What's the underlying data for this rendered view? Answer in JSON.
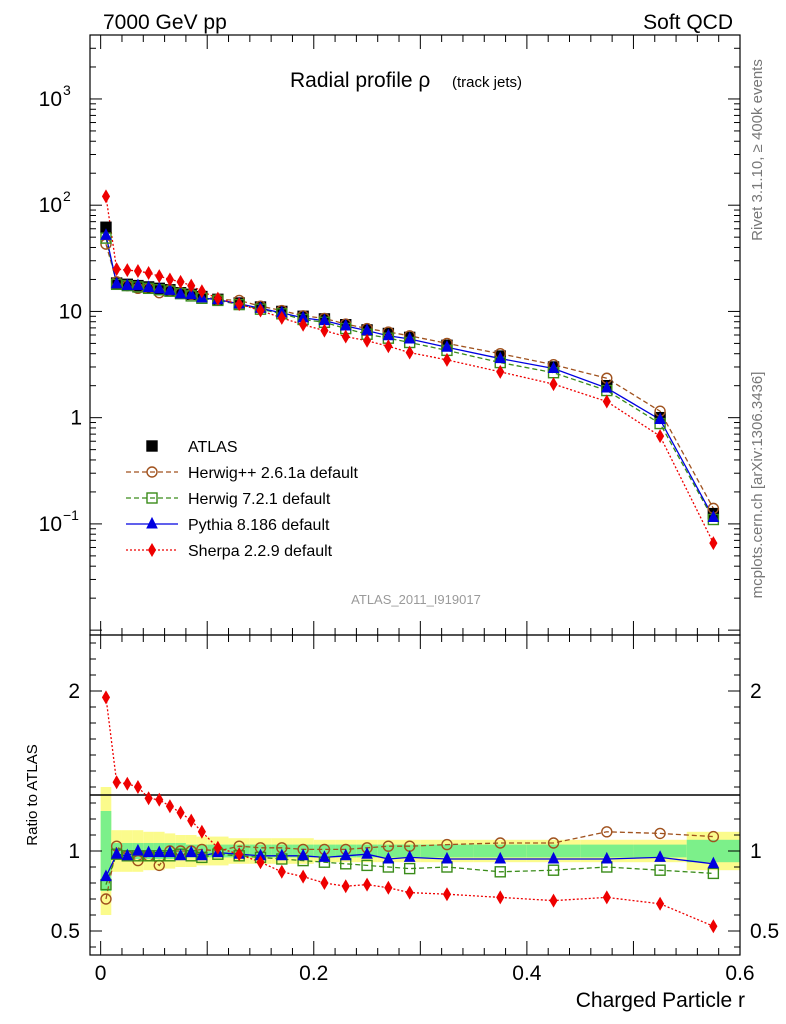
{
  "header": {
    "left": "7000 GeV pp",
    "right": "Soft QCD"
  },
  "side": {
    "rivet": "Rivet 3.1.10, ≥ 400k events",
    "mcplots": "mcplots.cern.ch [arXiv:1306.3436]"
  },
  "chart_data": {
    "type": "line",
    "title": "Radial profile ρ",
    "subtitle": "(track jets)",
    "analysis_label": "ATLAS_2011_I919017",
    "xlabel": "Charged Particle r",
    "ylabel_ratio": "Ratio to ATLAS",
    "xlim": [
      -0.01,
      0.6
    ],
    "ylim_main": [
      0.009,
      4000
    ],
    "ylog_main": true,
    "ylim_ratio": [
      0.35,
      2.35
    ],
    "x_ticks": [
      "0",
      "0.2",
      "0.4",
      "0.6"
    ],
    "y_ticks_main": [
      "10^-1",
      "1",
      "10",
      "10^2",
      "10^3"
    ],
    "y_ticks_ratio": [
      "0.5",
      "1",
      "2"
    ],
    "legend_position": "left-middle",
    "x": [
      0.005,
      0.015,
      0.025,
      0.035,
      0.045,
      0.055,
      0.065,
      0.075,
      0.085,
      0.095,
      0.11,
      0.13,
      0.15,
      0.17,
      0.19,
      0.21,
      0.23,
      0.25,
      0.27,
      0.29,
      0.325,
      0.375,
      0.425,
      0.475,
      0.525,
      0.575
    ],
    "series": [
      {
        "name": "ATLAS",
        "color": "#000000",
        "marker": "square-filled",
        "values": [
          62,
          18.5,
          18,
          17.5,
          17,
          16.5,
          16,
          15,
          14.5,
          13.8,
          13,
          12,
          11,
          10,
          9,
          8.5,
          7.5,
          6.7,
          6.2,
          5.7,
          4.8,
          3.8,
          3.0,
          2.0,
          1.0,
          0.125
        ]
      },
      {
        "name": "Herwig++ 2.6.1a default",
        "color": "#a0521e",
        "marker": "circle-open",
        "dash": "5,3",
        "values": [
          43,
          19,
          17.5,
          16.5,
          16.5,
          15,
          16,
          15,
          14.5,
          14,
          13,
          12.7,
          11.2,
          10.2,
          9.1,
          8.6,
          7.6,
          6.9,
          6.4,
          5.9,
          5.0,
          4.0,
          3.15,
          2.35,
          1.15,
          0.14
        ]
      },
      {
        "name": "Herwig 7.2.1 default",
        "color": "#3a8c1a",
        "marker": "square-open",
        "dash": "5,3",
        "values": [
          49,
          18,
          17.5,
          17,
          16.5,
          16,
          15.5,
          14.7,
          14,
          13.3,
          12.7,
          11.6,
          10.5,
          9.5,
          8.4,
          7.9,
          6.9,
          6.1,
          5.6,
          5.1,
          4.3,
          3.3,
          2.65,
          1.8,
          0.88,
          0.11
        ]
      },
      {
        "name": "Pythia 8.186 default",
        "color": "#0000e0",
        "marker": "triangle-filled",
        "values": [
          52,
          18.2,
          17.5,
          17.5,
          16.8,
          16.3,
          15.8,
          14.6,
          14.4,
          13.4,
          12.9,
          11.8,
          10.7,
          9.7,
          8.7,
          8.2,
          7.3,
          6.6,
          5.9,
          5.5,
          4.6,
          3.6,
          2.9,
          1.9,
          0.96,
          0.115
        ]
      },
      {
        "name": "Sherpa 2.2.9 default",
        "color": "#ee0000",
        "marker": "diamond-filled",
        "dash": "2,2",
        "values": [
          121,
          25,
          24.5,
          24,
          23,
          21.5,
          20,
          19,
          17.5,
          15.5,
          13.2,
          11.7,
          10.2,
          8.7,
          7.5,
          6.6,
          5.8,
          5.3,
          4.7,
          4.1,
          3.5,
          2.7,
          2.07,
          1.42,
          0.67,
          0.066
        ]
      }
    ],
    "ratio_series": [
      {
        "name": "Herwig++ 2.6.1a default",
        "values": [
          0.7,
          1.03,
          0.97,
          0.94,
          0.97,
          0.91,
          1.0,
          1.0,
          1.0,
          1.01,
          1.0,
          1.03,
          1.02,
          1.02,
          1.01,
          1.01,
          1.01,
          1.02,
          1.03,
          1.03,
          1.04,
          1.05,
          1.05,
          1.12,
          1.11,
          1.09
        ]
      },
      {
        "name": "Herwig 7.2.1 default",
        "values": [
          0.79,
          0.98,
          0.97,
          0.97,
          0.97,
          0.97,
          0.97,
          0.98,
          0.97,
          0.96,
          0.98,
          0.97,
          0.96,
          0.95,
          0.94,
          0.93,
          0.92,
          0.91,
          0.9,
          0.89,
          0.9,
          0.87,
          0.88,
          0.9,
          0.88,
          0.86
        ]
      },
      {
        "name": "Pythia 8.186 default",
        "values": [
          0.84,
          0.98,
          0.97,
          1.0,
          0.99,
          0.99,
          0.99,
          0.97,
          0.99,
          0.97,
          0.99,
          0.98,
          0.97,
          0.97,
          0.97,
          0.96,
          0.97,
          0.98,
          0.95,
          0.96,
          0.95,
          0.95,
          0.95,
          0.95,
          0.96,
          0.92
        ]
      },
      {
        "name": "Sherpa 2.2.9 default",
        "values": [
          1.96,
          1.43,
          1.42,
          1.4,
          1.33,
          1.32,
          1.28,
          1.24,
          1.19,
          1.12,
          1.02,
          0.98,
          0.93,
          0.87,
          0.84,
          0.8,
          0.78,
          0.79,
          0.77,
          0.74,
          0.73,
          0.71,
          0.69,
          0.71,
          0.67,
          0.53
        ]
      }
    ],
    "ratio_band": {
      "x_edges": [
        0,
        0.01,
        0.02,
        0.03,
        0.04,
        0.05,
        0.06,
        0.07,
        0.08,
        0.09,
        0.1,
        0.12,
        0.14,
        0.16,
        0.18,
        0.2,
        0.22,
        0.24,
        0.26,
        0.28,
        0.3,
        0.35,
        0.4,
        0.45,
        0.5,
        0.55,
        0.6
      ],
      "inner_halfwidth": [
        0.25,
        0.05,
        0.05,
        0.05,
        0.05,
        0.05,
        0.05,
        0.05,
        0.04,
        0.04,
        0.04,
        0.04,
        0.04,
        0.04,
        0.04,
        0.04,
        0.04,
        0.04,
        0.04,
        0.04,
        0.04,
        0.04,
        0.04,
        0.04,
        0.04,
        0.07
      ],
      "outer_halfwidth": [
        0.4,
        0.13,
        0.13,
        0.13,
        0.12,
        0.12,
        0.11,
        0.1,
        0.1,
        0.09,
        0.09,
        0.08,
        0.08,
        0.08,
        0.08,
        0.07,
        0.07,
        0.07,
        0.07,
        0.07,
        0.07,
        0.07,
        0.07,
        0.07,
        0.07,
        0.12
      ],
      "inner_color": "#7cf08a",
      "outer_color": "#fbfb8c"
    }
  }
}
